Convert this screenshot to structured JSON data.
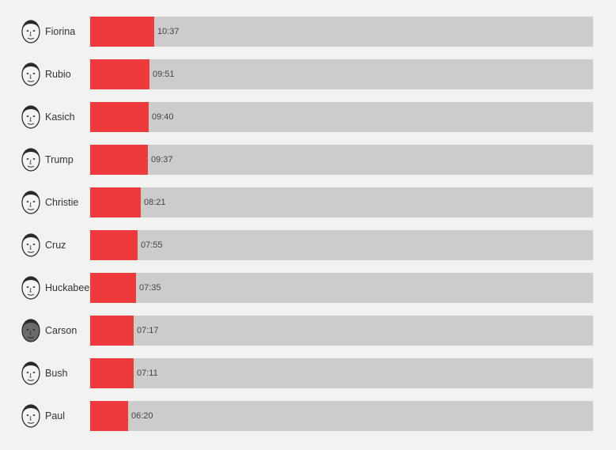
{
  "chart_data": {
    "type": "bar",
    "orientation": "horizontal",
    "unit": "minutes:seconds",
    "xlim": [
      "00:00",
      "1:23:30"
    ],
    "bar_color": "#ee3a3a",
    "track_color": "#cccccc",
    "grid": false,
    "legend": "none",
    "categories": [
      "Fiorina",
      "Rubio",
      "Kasich",
      "Trump",
      "Christie",
      "Cruz",
      "Huckabee",
      "Carson",
      "Bush",
      "Paul"
    ],
    "labels": [
      "10:37",
      "09:51",
      "09:40",
      "09:37",
      "08:21",
      "07:55",
      "07:35",
      "07:17",
      "07:11",
      "06:20"
    ],
    "values_seconds": [
      637,
      591,
      580,
      577,
      501,
      475,
      455,
      437,
      431,
      380
    ],
    "max_seconds": 5010,
    "icons": [
      "fiorina-portrait-icon",
      "rubio-portrait-icon",
      "kasich-portrait-icon",
      "trump-portrait-icon",
      "christie-portrait-icon",
      "cruz-portrait-icon",
      "huckabee-portrait-icon",
      "carson-portrait-icon",
      "bush-portrait-icon",
      "paul-portrait-icon"
    ]
  }
}
